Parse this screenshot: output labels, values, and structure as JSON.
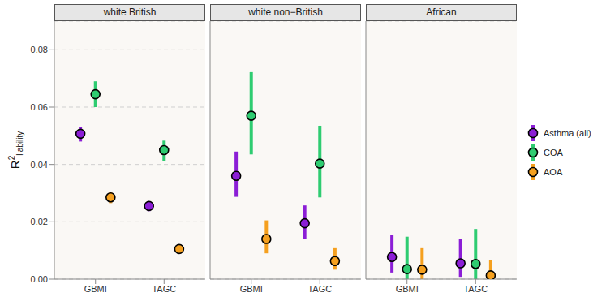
{
  "chart_data": [
    {
      "type": "scatter",
      "title": "white British",
      "y_label": {
        "text": "R",
        "superscript": "2",
        "subscript": "liability"
      },
      "categories": [
        "GBMI",
        "TAGC"
      ],
      "ylim": [
        0,
        0.09
      ],
      "yticks": [
        {
          "value": 0,
          "label": "0.00"
        },
        {
          "value": 0.02,
          "label": "0.02"
        },
        {
          "value": 0.04,
          "label": "0.04"
        },
        {
          "value": 0.06,
          "label": "0.06"
        },
        {
          "value": 0.08,
          "label": "0.08"
        }
      ],
      "grid": true,
      "marker": "circle",
      "series": [
        {
          "name": "Asthma (all)",
          "color": "#8B1ED6",
          "values": [
            0.0507,
            0.0255
          ],
          "lower": [
            0.048,
            0.0237
          ],
          "upper": [
            0.053,
            0.0272
          ]
        },
        {
          "name": "COA",
          "color": "#2ECC71",
          "values": [
            0.0645,
            0.045
          ],
          "lower": [
            0.06,
            0.0413
          ],
          "upper": [
            0.069,
            0.0483
          ]
        },
        {
          "name": "AOA",
          "color": "#F5A01F",
          "values": [
            0.0285,
            0.0105
          ],
          "lower": [
            0.0265,
            0.0098
          ],
          "upper": [
            0.0305,
            0.0112
          ]
        }
      ]
    },
    {
      "type": "scatter",
      "title": "white non−British",
      "categories": [
        "GBMI",
        "TAGC"
      ],
      "ylim": [
        0,
        0.09
      ],
      "yticks": [
        0,
        0.02,
        0.04,
        0.06,
        0.08
      ],
      "tick_labels": "x",
      "grid": true,
      "marker": "circle",
      "series": [
        {
          "name": "Asthma (all)",
          "color": "#8B1ED6",
          "values": [
            0.036,
            0.0195
          ],
          "lower": [
            0.0287,
            0.014
          ],
          "upper": [
            0.0445,
            0.0257
          ]
        },
        {
          "name": "COA",
          "color": "#2ECC71",
          "values": [
            0.057,
            0.0403
          ],
          "lower": [
            0.0435,
            0.0285
          ],
          "upper": [
            0.0722,
            0.0535
          ]
        },
        {
          "name": "AOA",
          "color": "#F5A01F",
          "values": [
            0.014,
            0.0063
          ],
          "lower": [
            0.009,
            0.0033
          ],
          "upper": [
            0.0205,
            0.0108
          ]
        }
      ]
    },
    {
      "type": "scatter",
      "title": "African",
      "categories": [
        "GBMI",
        "TAGC"
      ],
      "ylim": [
        0,
        0.09
      ],
      "yticks": [
        0,
        0.02,
        0.04,
        0.06,
        0.08
      ],
      "tick_labels": "x",
      "grid": true,
      "marker": "circle",
      "legend": "right",
      "series": [
        {
          "name": "Asthma (all)",
          "color": "#8B1ED6",
          "values": [
            0.0077,
            0.0055
          ],
          "lower": [
            0.0023,
            0.0008
          ],
          "upper": [
            0.0153,
            0.014
          ]
        },
        {
          "name": "COA",
          "color": "#2ECC71",
          "values": [
            0.0035,
            0.0053
          ],
          "lower": [
            0,
            0
          ],
          "upper": [
            0.0148,
            0.0175
          ]
        },
        {
          "name": "AOA",
          "color": "#F5A01F",
          "values": [
            0.0033,
            0.0013
          ],
          "lower": [
            0,
            0
          ],
          "upper": [
            0.0108,
            0.0068
          ]
        }
      ]
    }
  ]
}
